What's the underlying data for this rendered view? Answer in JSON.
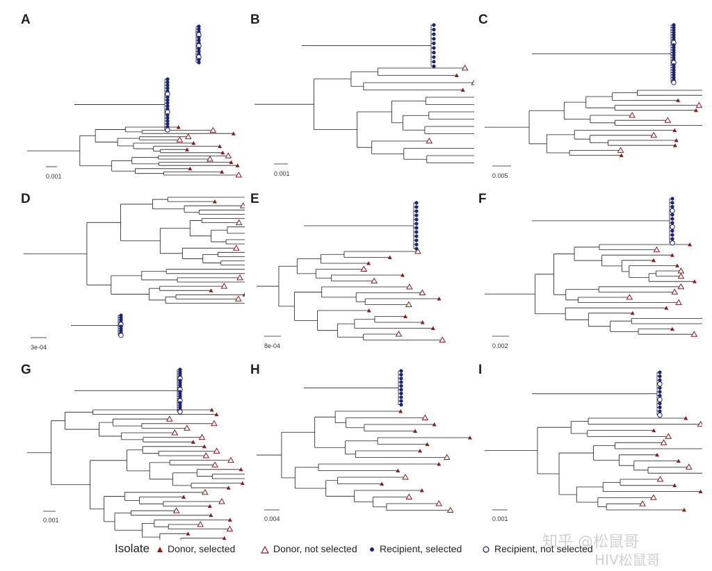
{
  "colors": {
    "donor": "#8b1a1a",
    "recipient": "#1a237e",
    "branch": "#1a1a1a"
  },
  "panels": [
    {
      "letter": "A",
      "scale": "0.001"
    },
    {
      "letter": "B",
      "scale": "0.001"
    },
    {
      "letter": "C",
      "scale": "0.005"
    },
    {
      "letter": "D",
      "scale": "3e-04"
    },
    {
      "letter": "E",
      "scale": "8e-04"
    },
    {
      "letter": "F",
      "scale": "0.002"
    },
    {
      "letter": "G",
      "scale": "0.001"
    },
    {
      "letter": "H",
      "scale": "0.004"
    },
    {
      "letter": "I",
      "scale": "0.001"
    }
  ],
  "legend": {
    "title": "Isolate",
    "items": [
      {
        "label": "Donor, selected",
        "symbol": "triangle-filled"
      },
      {
        "label": "Donor, not selected",
        "symbol": "triangle-open"
      },
      {
        "label": "Recipient, selected",
        "symbol": "circle-filled"
      },
      {
        "label": "Recipient, not selected",
        "symbol": "circle-open"
      }
    ]
  },
  "watermark": {
    "line1": "知乎 @松鼠哥",
    "line2": "HIV松鼠哥"
  }
}
